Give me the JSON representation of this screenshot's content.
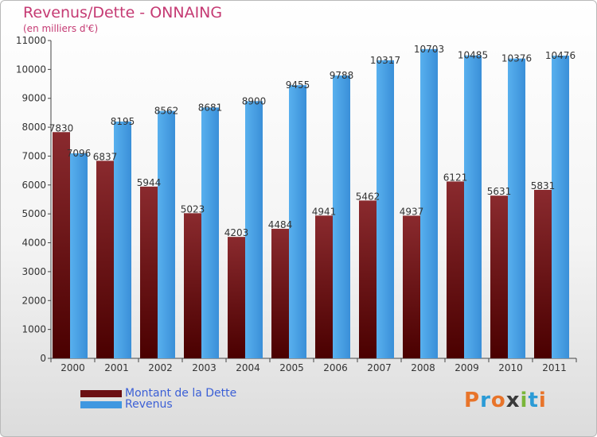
{
  "title": "Revenus/Dette - ONNAING",
  "subtitle": "(en milliers d'€)",
  "logo": {
    "text": "Proxiti",
    "letters": [
      "P",
      "r",
      "o",
      "x",
      "i",
      "t",
      "i"
    ],
    "colors": [
      "#e8742a",
      "#2b9bd6",
      "#e8742a",
      "#3a3a3a",
      "#7ab63a",
      "#2b9bd6",
      "#e8742a"
    ]
  },
  "colors": {
    "debt": "#6b0f14",
    "revenue": "#3f97e0",
    "title": "#c53a73"
  },
  "chart_data": {
    "type": "bar",
    "title": "Revenus/Dette - ONNAING",
    "ylabel": "(en milliers d'€)",
    "categories": [
      "2000",
      "2001",
      "2002",
      "2003",
      "2004",
      "2005",
      "2006",
      "2007",
      "2008",
      "2009",
      "2010",
      "2011"
    ],
    "series": [
      {
        "name": "Montant de la Dette",
        "values": [
          7830,
          6837,
          5944,
          5023,
          4203,
          4484,
          4941,
          5462,
          4937,
          6121,
          5631,
          5831
        ],
        "labels": [
          "7830",
          "6837",
          "5944",
          "5023",
          "4203",
          "4484",
          "4941",
          "5462",
          "4937",
          "6121",
          "5631",
          "5831"
        ]
      },
      {
        "name": "Revenus",
        "values": [
          7096,
          8195,
          8562,
          8681,
          8900,
          9455,
          9788,
          10317,
          10703,
          10485,
          10376,
          10476
        ],
        "labels": [
          "7096",
          "8195",
          "8562",
          "8681",
          "8900",
          "9455",
          "9788",
          "10317",
          "10703",
          "10485",
          "10376",
          "10476"
        ]
      }
    ],
    "ylim": [
      0,
      11000
    ],
    "yticks": [
      0,
      1000,
      2000,
      3000,
      4000,
      5000,
      6000,
      7000,
      8000,
      9000,
      10000,
      11000
    ],
    "grid": false,
    "legend": "bottom-left"
  }
}
